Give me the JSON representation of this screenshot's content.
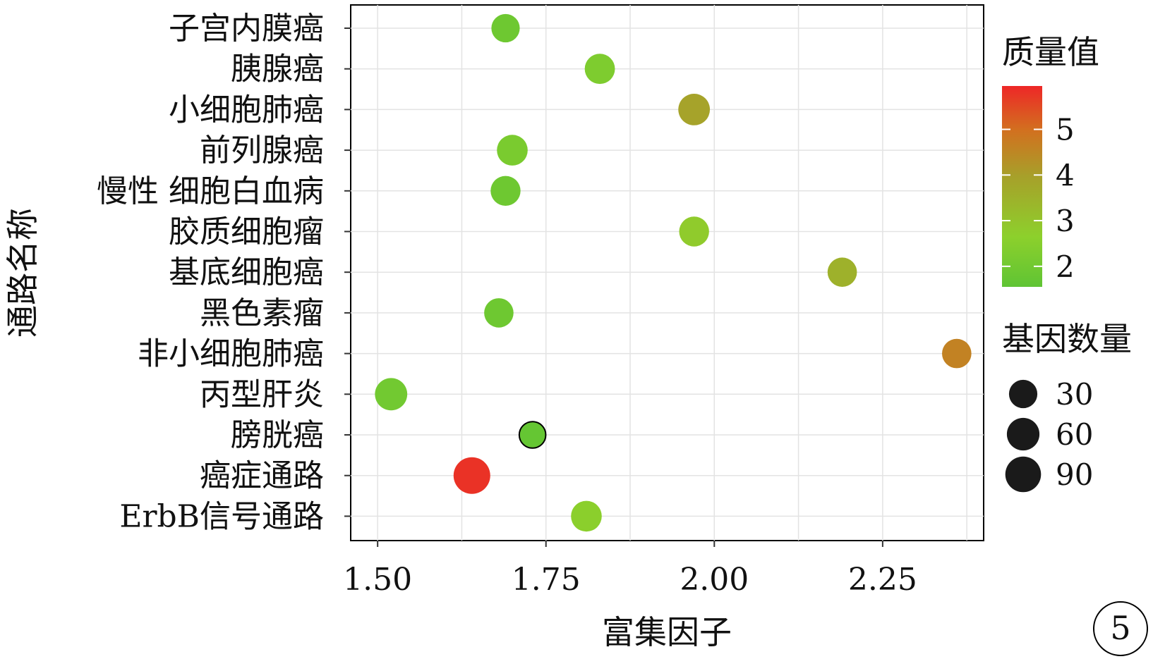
{
  "chart_data": {
    "type": "scatter",
    "xlabel": "富集因子",
    "ylabel": "通路名称",
    "xlim": [
      1.46,
      2.4
    ],
    "xticks": [
      {
        "value": 1.5,
        "label": "1.50"
      },
      {
        "value": 1.75,
        "label": "1.75"
      },
      {
        "value": 2.0,
        "label": "2.00"
      },
      {
        "value": 2.25,
        "label": "2.25"
      }
    ],
    "categories": [
      "子宫内膜癌",
      "胰腺癌",
      "小细胞肺癌",
      "前列腺癌",
      "慢性 细胞白血病",
      "胶质细胞瘤",
      "基底细胞癌",
      "黑色素瘤",
      "非小细胞肺癌",
      "丙型肝炎",
      "膀胱癌",
      "癌症通路",
      "ErbB信号通路"
    ],
    "points": [
      {
        "category": "子宫内膜癌",
        "x": 1.69,
        "quality": 1.9,
        "genes": 30
      },
      {
        "category": "胰腺癌",
        "x": 1.83,
        "quality": 2.3,
        "genes": 42
      },
      {
        "category": "小细胞肺癌",
        "x": 1.97,
        "quality": 3.9,
        "genes": 52
      },
      {
        "category": "前列腺癌",
        "x": 1.7,
        "quality": 2.2,
        "genes": 46
      },
      {
        "category": "慢性 细胞白血病",
        "x": 1.69,
        "quality": 1.9,
        "genes": 40
      },
      {
        "category": "胶质细胞瘤",
        "x": 1.97,
        "quality": 2.8,
        "genes": 40
      },
      {
        "category": "基底细胞癌",
        "x": 2.19,
        "quality": 3.5,
        "genes": 36
      },
      {
        "category": "黑色素瘤",
        "x": 1.68,
        "quality": 1.9,
        "genes": 36
      },
      {
        "category": "非小细胞肺癌",
        "x": 2.36,
        "quality": 4.6,
        "genes": 36
      },
      {
        "category": "丙型肝炎",
        "x": 1.52,
        "quality": 2.0,
        "genes": 58
      },
      {
        "category": "膀胱癌",
        "x": 1.73,
        "quality": 1.7,
        "genes": 20,
        "outlined": true
      },
      {
        "category": "癌症通路",
        "x": 1.64,
        "quality": 5.8,
        "genes": 100
      },
      {
        "category": "ErbB信号通路",
        "x": 1.81,
        "quality": 2.6,
        "genes": 46
      }
    ],
    "color_legend": {
      "title": "质量值",
      "min": 1.55,
      "max": 5.95,
      "ticks": [
        {
          "value": 2,
          "label": "2"
        },
        {
          "value": 3,
          "label": "3"
        },
        {
          "value": 4,
          "label": "4"
        },
        {
          "value": 5,
          "label": "5"
        }
      ],
      "colors": [
        "#5fc434",
        "#8dd02c",
        "#a7a02a",
        "#d2701f",
        "#ee2727"
      ]
    },
    "size_legend": {
      "title": "基因数量",
      "items": [
        {
          "value": 30,
          "label": "30"
        },
        {
          "value": 60,
          "label": "60"
        },
        {
          "value": 90,
          "label": "90"
        }
      ]
    },
    "grid": true,
    "legend_position": "right",
    "panel_label": "5"
  }
}
